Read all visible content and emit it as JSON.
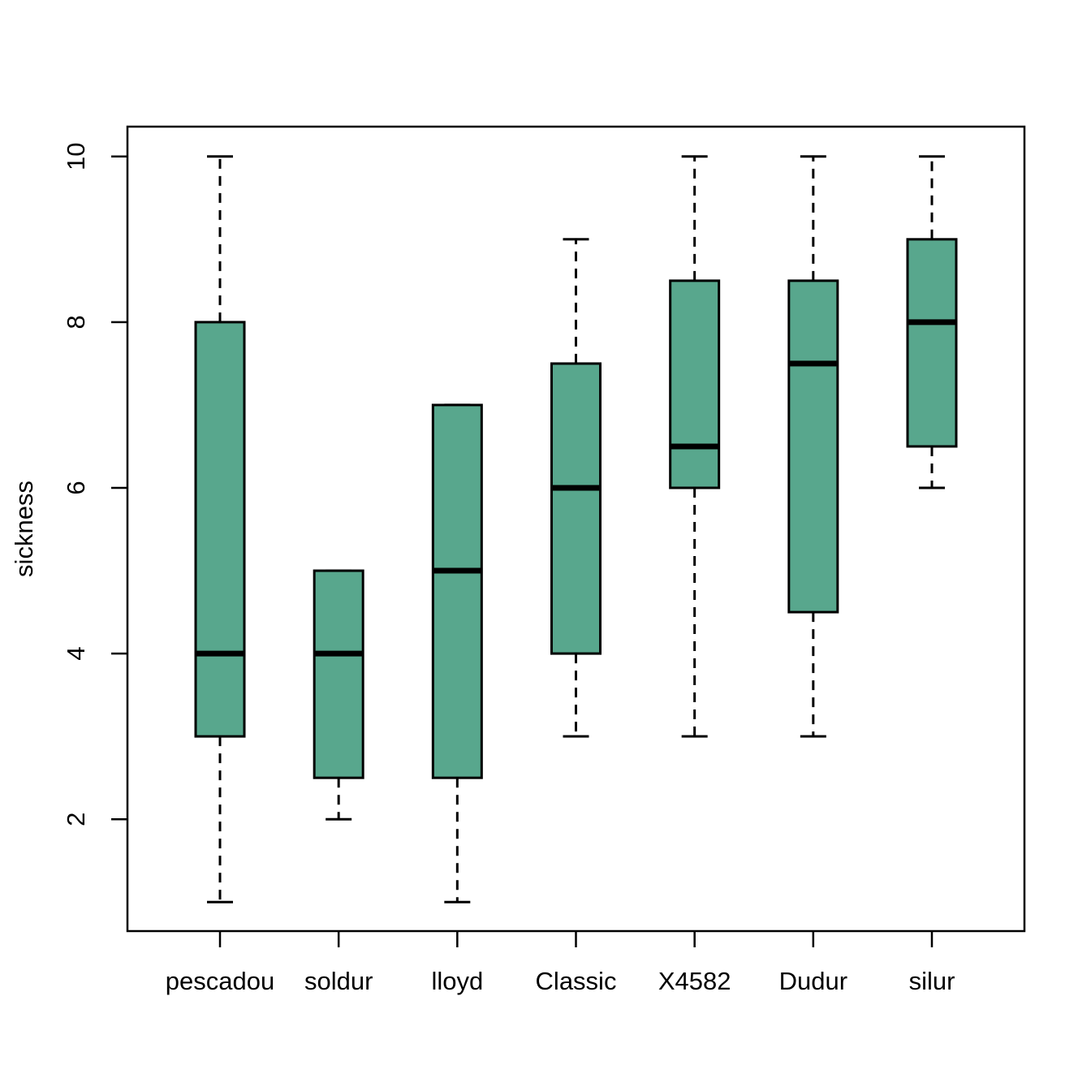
{
  "chart_data": {
    "type": "boxplot",
    "title": "",
    "xlabel": "",
    "ylabel": "sickness",
    "yticks": [
      2,
      4,
      6,
      8,
      10
    ],
    "ylim": [
      0.65,
      10.36
    ],
    "grid": false,
    "legend": null,
    "categories": [
      "pescadou",
      "soldur",
      "lloyd",
      "Classic",
      "X4582",
      "Dudur",
      "silur"
    ],
    "series": [
      {
        "name": "pescadou",
        "whisker_low": 1,
        "q1": 3,
        "median": 4,
        "q3": 8,
        "whisker_high": 10
      },
      {
        "name": "soldur",
        "whisker_low": 2,
        "q1": 2.5,
        "median": 4,
        "q3": 5,
        "whisker_high": 5
      },
      {
        "name": "lloyd",
        "whisker_low": 1,
        "q1": 2.5,
        "median": 5,
        "q3": 7,
        "whisker_high": 7
      },
      {
        "name": "Classic",
        "whisker_low": 3,
        "q1": 4,
        "median": 6,
        "q3": 7.5,
        "whisker_high": 9
      },
      {
        "name": "X4582",
        "whisker_low": 3,
        "q1": 6,
        "median": 6.5,
        "q3": 8.5,
        "whisker_high": 10
      },
      {
        "name": "Dudur",
        "whisker_low": 3,
        "q1": 4.5,
        "median": 7.5,
        "q3": 8.5,
        "whisker_high": 10
      },
      {
        "name": "silur",
        "whisker_low": 6,
        "q1": 6.5,
        "median": 8,
        "q3": 9,
        "whisker_high": 10
      }
    ],
    "colors": {
      "box_fill": "#58a78d",
      "stroke": "#000000",
      "background": "#ffffff"
    }
  }
}
